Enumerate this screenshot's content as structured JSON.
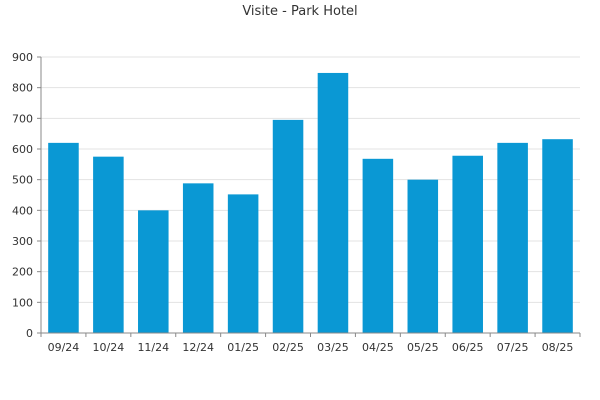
{
  "chart_data": {
    "type": "bar",
    "title": "Visite - Park Hotel",
    "xlabel": "",
    "ylabel": "",
    "categories": [
      "09/24",
      "10/24",
      "11/24",
      "12/24",
      "01/25",
      "02/25",
      "03/25",
      "04/25",
      "05/25",
      "06/25",
      "07/25",
      "08/25"
    ],
    "values": [
      620,
      575,
      400,
      488,
      452,
      695,
      848,
      568,
      500,
      578,
      620,
      632
    ],
    "ylim": [
      0,
      900
    ],
    "yticks": [
      0,
      100,
      200,
      300,
      400,
      500,
      600,
      700,
      800,
      900
    ],
    "grid": true,
    "legend": "none",
    "colors": {
      "bar": "#0a98d4",
      "axis": "#888888",
      "grid": "#e3e3e3",
      "text": "#333333"
    }
  }
}
